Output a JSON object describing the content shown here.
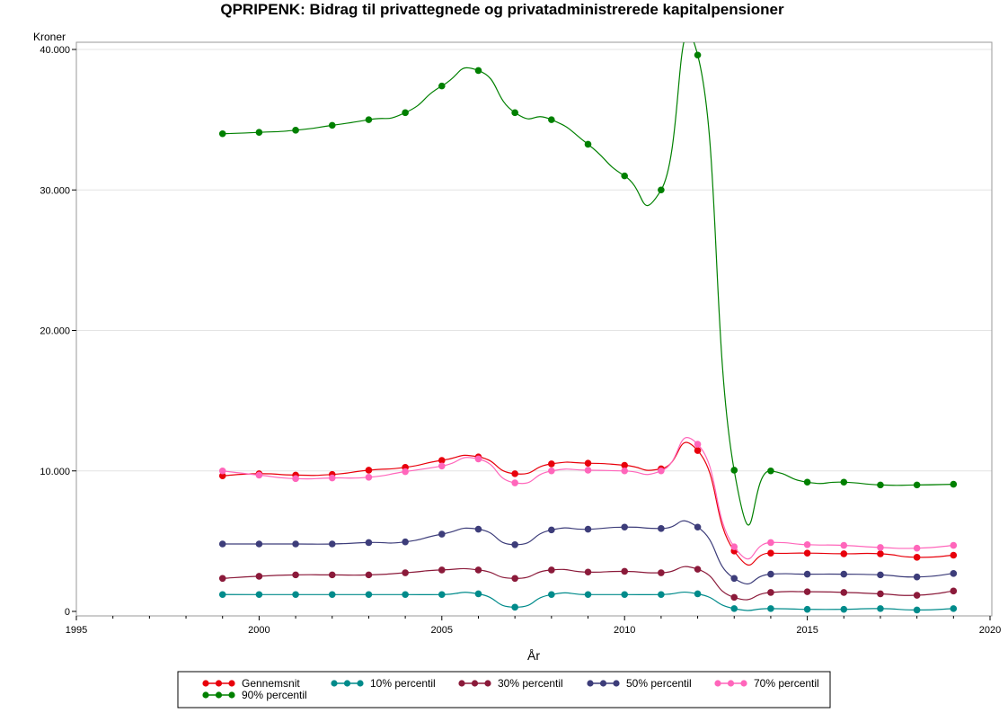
{
  "chart_data": {
    "type": "line",
    "title": "QPRIPENK: Bidrag til privattegnede og privatadministrerede kapitalpensioner",
    "unit_label": "Kroner",
    "xlabel": "År",
    "ylabel": "",
    "xlim": [
      1995,
      2020
    ],
    "ylim": [
      0,
      40000
    ],
    "x_ticks": [
      1995,
      2000,
      2005,
      2010,
      2015,
      2020
    ],
    "x_tick_labels": [
      "1995",
      "2000",
      "2005",
      "2010",
      "2015",
      "2020"
    ],
    "y_ticks": [
      0,
      10000,
      20000,
      30000,
      40000
    ],
    "y_tick_labels": [
      "0",
      "10.000",
      "20.000",
      "30.000",
      "40.000"
    ],
    "grid": "horizontal",
    "legend_position": "bottom",
    "x": [
      1999,
      2000,
      2001,
      2002,
      2003,
      2004,
      2005,
      2006,
      2007,
      2008,
      2009,
      2010,
      2011,
      2012,
      2013,
      2014,
      2015,
      2016,
      2017,
      2018,
      2019
    ],
    "series": [
      {
        "name": "Gennemsnit",
        "color": "#e8000b",
        "values": [
          9650,
          9800,
          9700,
          9750,
          10050,
          10250,
          10750,
          11000,
          9800,
          10500,
          10550,
          10400,
          10150,
          11450,
          4300,
          4150,
          4150,
          4100,
          4100,
          3850,
          4000
        ]
      },
      {
        "name": "10% percentil",
        "color": "#008b8b",
        "values": [
          1200,
          1200,
          1200,
          1200,
          1200,
          1200,
          1200,
          1250,
          300,
          1200,
          1200,
          1200,
          1200,
          1250,
          200,
          200,
          150,
          150,
          200,
          100,
          200
        ]
      },
      {
        "name": "30% percentil",
        "color": "#8b1a3a",
        "values": [
          2350,
          2500,
          2600,
          2600,
          2600,
          2750,
          2950,
          2950,
          2350,
          2950,
          2800,
          2850,
          2750,
          3000,
          1000,
          1350,
          1400,
          1350,
          1250,
          1150,
          1450
        ]
      },
      {
        "name": "50% percentil",
        "color": "#3d3d7a",
        "values": [
          4800,
          4800,
          4800,
          4800,
          4900,
          4950,
          5500,
          5850,
          4750,
          5800,
          5850,
          6000,
          5900,
          6000,
          2350,
          2650,
          2650,
          2650,
          2600,
          2450,
          2700
        ]
      },
      {
        "name": "70% percentil",
        "color": "#ff66bb",
        "values": [
          10000,
          9700,
          9450,
          9500,
          9550,
          9950,
          10350,
          10850,
          9150,
          10000,
          10050,
          10000,
          10000,
          11900,
          4600,
          4900,
          4750,
          4700,
          4550,
          4500,
          4700
        ]
      },
      {
        "name": "90% percentil",
        "color": "#008000",
        "values": [
          34000,
          34100,
          34250,
          34600,
          35000,
          35500,
          37400,
          38500,
          35500,
          35000,
          33250,
          31000,
          30000,
          39600,
          10050,
          10000,
          9200,
          9200,
          9000,
          9000,
          9050
        ]
      }
    ]
  }
}
